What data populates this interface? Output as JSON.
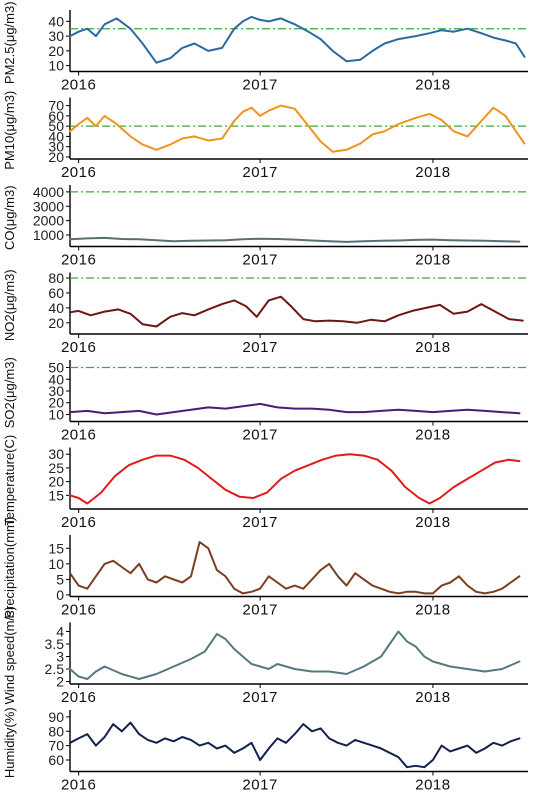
{
  "chart_data": [
    {
      "type": "line",
      "ylabel": "PM2.5(μg/m3)",
      "color": "#2a6aa3",
      "yticks": [
        10,
        20,
        30,
        40
      ],
      "ylim": [
        6,
        45
      ],
      "threshold": 35,
      "threshold_color": "#3aaa35",
      "xticks": [
        "2016",
        "2017",
        "2018"
      ],
      "x_year_positions": [
        2016.05,
        2017.1,
        2018.1
      ],
      "xlim": [
        2016.0,
        2018.65
      ],
      "series": [
        {
          "x": [
            2016.0,
            2016.05,
            2016.1,
            2016.15,
            2016.2,
            2016.27,
            2016.35,
            2016.42,
            2016.5,
            2016.58,
            2016.65,
            2016.72,
            2016.8,
            2016.88,
            2016.95,
            2017.0,
            2017.05,
            2017.1,
            2017.15,
            2017.22,
            2017.3,
            2017.38,
            2017.45,
            2017.52,
            2017.6,
            2017.68,
            2017.75,
            2017.82,
            2017.9,
            2018.0,
            2018.08,
            2018.15,
            2018.22,
            2018.3,
            2018.38,
            2018.45,
            2018.52,
            2018.58,
            2018.63
          ],
          "values": [
            30,
            33,
            35,
            30,
            38,
            42,
            35,
            25,
            12,
            15,
            22,
            25,
            20,
            22,
            35,
            40,
            43,
            41,
            40,
            42,
            38,
            33,
            28,
            20,
            13,
            14,
            20,
            25,
            28,
            30,
            32,
            34,
            33,
            35,
            32,
            29,
            27,
            25,
            16
          ]
        }
      ]
    },
    {
      "type": "line",
      "ylabel": "PM10(μg/m3)",
      "color": "#f0941d",
      "yticks": [
        20,
        30,
        40,
        50,
        60,
        70
      ],
      "ylim": [
        18,
        74
      ],
      "threshold": 50,
      "threshold_color": "#3aaa35",
      "xticks": [
        "2016",
        "2017",
        "2018"
      ],
      "x_year_positions": [
        2016.05,
        2017.1,
        2018.1
      ],
      "xlim": [
        2016.0,
        2018.65
      ],
      "series": [
        {
          "x": [
            2016.0,
            2016.05,
            2016.1,
            2016.15,
            2016.2,
            2016.27,
            2016.35,
            2016.42,
            2016.5,
            2016.58,
            2016.65,
            2016.72,
            2016.8,
            2016.88,
            2016.95,
            2017.0,
            2017.05,
            2017.1,
            2017.15,
            2017.22,
            2017.3,
            2017.38,
            2017.45,
            2017.52,
            2017.6,
            2017.68,
            2017.75,
            2017.82,
            2017.9,
            2018.0,
            2018.08,
            2018.15,
            2018.22,
            2018.3,
            2018.38,
            2018.45,
            2018.52,
            2018.58,
            2018.63
          ],
          "values": [
            45,
            52,
            58,
            50,
            60,
            52,
            40,
            32,
            27,
            32,
            38,
            40,
            36,
            38,
            55,
            64,
            68,
            60,
            65,
            70,
            67,
            50,
            35,
            25,
            27,
            33,
            42,
            45,
            52,
            58,
            62,
            56,
            45,
            40,
            55,
            68,
            60,
            45,
            33
          ]
        }
      ]
    },
    {
      "type": "line",
      "ylabel": "CO(μg/m3)",
      "color": "#5a6e76",
      "yticks": [
        1000,
        2000,
        3000,
        4000
      ],
      "ylim": [
        200,
        4200
      ],
      "threshold": 4000,
      "threshold_color": "#3aaa35",
      "xticks": [
        "2016",
        "2017",
        "2018"
      ],
      "x_year_positions": [
        2016.05,
        2017.1,
        2018.1
      ],
      "xlim": [
        2016.0,
        2018.65
      ],
      "series": [
        {
          "x": [
            2016.0,
            2016.1,
            2016.2,
            2016.3,
            2016.4,
            2016.5,
            2016.6,
            2016.7,
            2016.8,
            2016.9,
            2017.0,
            2017.1,
            2017.2,
            2017.3,
            2017.4,
            2017.5,
            2017.6,
            2017.7,
            2017.8,
            2017.9,
            2018.0,
            2018.1,
            2018.2,
            2018.3,
            2018.4,
            2018.5,
            2018.6
          ],
          "values": [
            700,
            760,
            800,
            720,
            700,
            640,
            560,
            600,
            620,
            640,
            700,
            740,
            720,
            680,
            620,
            560,
            520,
            560,
            600,
            620,
            660,
            680,
            640,
            620,
            600,
            560,
            540
          ]
        }
      ]
    },
    {
      "type": "line",
      "ylabel": "NO2(μg/m3)",
      "color": "#6e1616",
      "yticks": [
        20,
        40,
        60,
        80
      ],
      "ylim": [
        5,
        82
      ],
      "threshold": 80,
      "threshold_color": "#3aaa35",
      "xticks": [
        "2016",
        "2017",
        "2018"
      ],
      "x_year_positions": [
        2016.05,
        2017.1,
        2018.1
      ],
      "xlim": [
        2016.0,
        2018.65
      ],
      "series": [
        {
          "x": [
            2016.0,
            2016.05,
            2016.12,
            2016.2,
            2016.28,
            2016.35,
            2016.42,
            2016.5,
            2016.58,
            2016.65,
            2016.72,
            2016.8,
            2016.88,
            2016.95,
            2017.02,
            2017.08,
            2017.15,
            2017.22,
            2017.28,
            2017.35,
            2017.42,
            2017.5,
            2017.58,
            2017.66,
            2017.74,
            2017.82,
            2017.9,
            2017.98,
            2018.06,
            2018.14,
            2018.22,
            2018.3,
            2018.38,
            2018.46,
            2018.54,
            2018.62
          ],
          "values": [
            34,
            36,
            30,
            35,
            38,
            32,
            18,
            15,
            28,
            33,
            30,
            38,
            45,
            50,
            42,
            28,
            50,
            55,
            42,
            25,
            22,
            23,
            22,
            20,
            24,
            22,
            30,
            36,
            40,
            44,
            32,
            35,
            45,
            35,
            25,
            23
          ]
        }
      ]
    },
    {
      "type": "line",
      "ylabel": "SO2(μg/m3)",
      "color": "#4e1a7a",
      "yticks": [
        10,
        20,
        30,
        40,
        50
      ],
      "ylim": [
        4,
        53
      ],
      "threshold": 50,
      "threshold_color": "#3aaa35",
      "xticks": [
        "2016",
        "2017",
        "2018"
      ],
      "x_year_positions": [
        2016.05,
        2017.1,
        2018.1
      ],
      "xlim": [
        2016.0,
        2018.65
      ],
      "series": [
        {
          "x": [
            2016.0,
            2016.1,
            2016.2,
            2016.3,
            2016.4,
            2016.5,
            2016.6,
            2016.7,
            2016.8,
            2016.9,
            2017.0,
            2017.1,
            2017.2,
            2017.3,
            2017.4,
            2017.5,
            2017.6,
            2017.7,
            2017.8,
            2017.9,
            2018.0,
            2018.1,
            2018.2,
            2018.3,
            2018.4,
            2018.5,
            2018.6
          ],
          "values": [
            12,
            13,
            11,
            12,
            13,
            10,
            12,
            14,
            16,
            15,
            17,
            19,
            16,
            15,
            15,
            14,
            12,
            12,
            13,
            14,
            13,
            12,
            13,
            14,
            13,
            12,
            11
          ]
        }
      ]
    },
    {
      "type": "line",
      "ylabel": "Temperature(C)",
      "color": "#e11b1b",
      "yticks": [
        15,
        20,
        25,
        30
      ],
      "ylim": [
        10,
        31
      ],
      "xticks": [
        "2016",
        "2017",
        "2018"
      ],
      "x_year_positions": [
        2016.05,
        2017.1,
        2018.1
      ],
      "xlim": [
        2016.0,
        2018.65
      ],
      "series": [
        {
          "x": [
            2016.0,
            2016.05,
            2016.1,
            2016.18,
            2016.26,
            2016.34,
            2016.42,
            2016.5,
            2016.58,
            2016.66,
            2016.74,
            2016.82,
            2016.9,
            2016.98,
            2017.06,
            2017.14,
            2017.22,
            2017.3,
            2017.38,
            2017.46,
            2017.54,
            2017.62,
            2017.7,
            2017.78,
            2017.86,
            2017.94,
            2018.02,
            2018.08,
            2018.14,
            2018.22,
            2018.3,
            2018.38,
            2018.46,
            2018.54,
            2018.6
          ],
          "values": [
            15,
            14,
            12,
            16,
            22,
            26,
            28,
            29.5,
            29.5,
            28,
            25,
            21,
            17,
            14.5,
            14,
            16,
            21,
            24,
            26,
            28,
            29.5,
            30,
            29.5,
            28,
            24,
            18,
            14,
            12,
            14,
            18,
            21,
            24,
            27,
            28,
            27.5
          ]
        }
      ]
    },
    {
      "type": "line",
      "ylabel": "Precipitation(mm)",
      "color": "#7a3e20",
      "yticks": [
        0,
        5,
        10,
        15
      ],
      "ylim": [
        -0.5,
        18
      ],
      "xticks": [
        "2016",
        "2017",
        "2018"
      ],
      "x_year_positions": [
        2016.05,
        2017.1,
        2018.1
      ],
      "xlim": [
        2016.0,
        2018.65
      ],
      "series": [
        {
          "x": [
            2016.0,
            2016.05,
            2016.1,
            2016.15,
            2016.2,
            2016.25,
            2016.3,
            2016.35,
            2016.4,
            2016.45,
            2016.5,
            2016.55,
            2016.6,
            2016.65,
            2016.7,
            2016.75,
            2016.8,
            2016.85,
            2016.9,
            2016.95,
            2017.0,
            2017.05,
            2017.1,
            2017.15,
            2017.2,
            2017.25,
            2017.3,
            2017.35,
            2017.4,
            2017.45,
            2017.5,
            2017.55,
            2017.6,
            2017.65,
            2017.7,
            2017.75,
            2017.8,
            2017.85,
            2017.9,
            2017.95,
            2018.0,
            2018.05,
            2018.1,
            2018.15,
            2018.2,
            2018.25,
            2018.3,
            2018.35,
            2018.4,
            2018.45,
            2018.5,
            2018.55,
            2018.6
          ],
          "values": [
            7,
            3,
            2,
            6,
            10,
            11,
            9,
            7,
            10,
            5,
            4,
            6,
            5,
            4,
            6,
            17,
            15,
            8,
            6,
            2,
            0.5,
            1,
            2,
            6,
            4,
            2,
            3,
            2,
            5,
            8,
            10,
            6,
            3,
            7,
            5,
            3,
            2,
            1,
            0.5,
            1,
            1,
            0.5,
            0.5,
            3,
            4,
            6,
            3,
            1,
            0.5,
            1,
            2,
            4,
            6
          ]
        }
      ]
    },
    {
      "type": "line",
      "ylabel": "Wind speed(m/s)",
      "color": "#567880",
      "yticks": [
        2.0,
        2.5,
        3.0,
        3.5,
        4.0
      ],
      "ylim": [
        1.9,
        4.2
      ],
      "xticks": [
        "2016",
        "2017",
        "2018"
      ],
      "x_year_positions": [
        2016.05,
        2017.1,
        2018.1
      ],
      "xlim": [
        2016.0,
        2018.65
      ],
      "series": [
        {
          "x": [
            2016.0,
            2016.05,
            2016.1,
            2016.15,
            2016.2,
            2016.3,
            2016.4,
            2016.5,
            2016.6,
            2016.7,
            2016.78,
            2016.85,
            2016.9,
            2016.95,
            2017.0,
            2017.05,
            2017.1,
            2017.15,
            2017.2,
            2017.3,
            2017.4,
            2017.5,
            2017.6,
            2017.7,
            2017.8,
            2017.85,
            2017.9,
            2017.95,
            2018.0,
            2018.05,
            2018.1,
            2018.2,
            2018.3,
            2018.4,
            2018.5,
            2018.6
          ],
          "values": [
            2.5,
            2.2,
            2.1,
            2.4,
            2.6,
            2.3,
            2.1,
            2.3,
            2.6,
            2.9,
            3.2,
            3.9,
            3.7,
            3.3,
            3.0,
            2.7,
            2.6,
            2.5,
            2.7,
            2.5,
            2.4,
            2.4,
            2.3,
            2.6,
            3.0,
            3.5,
            4.0,
            3.6,
            3.4,
            3.0,
            2.8,
            2.6,
            2.5,
            2.4,
            2.5,
            2.8
          ]
        }
      ]
    },
    {
      "type": "line",
      "ylabel": "Humidity(%)",
      "color": "#14204f",
      "yticks": [
        60,
        70,
        80,
        90
      ],
      "ylim": [
        52,
        92
      ],
      "xticks": [
        "2016",
        "2017",
        "2018"
      ],
      "x_year_positions": [
        2016.05,
        2017.1,
        2018.1
      ],
      "xlim": [
        2016.0,
        2018.65
      ],
      "series": [
        {
          "x": [
            2016.0,
            2016.05,
            2016.1,
            2016.15,
            2016.2,
            2016.25,
            2016.3,
            2016.35,
            2016.4,
            2016.45,
            2016.5,
            2016.55,
            2016.6,
            2016.65,
            2016.7,
            2016.75,
            2016.8,
            2016.85,
            2016.9,
            2016.95,
            2017.0,
            2017.05,
            2017.1,
            2017.15,
            2017.2,
            2017.25,
            2017.3,
            2017.35,
            2017.4,
            2017.45,
            2017.5,
            2017.55,
            2017.6,
            2017.65,
            2017.7,
            2017.75,
            2017.8,
            2017.85,
            2017.9,
            2017.95,
            2018.0,
            2018.05,
            2018.1,
            2018.15,
            2018.2,
            2018.25,
            2018.3,
            2018.35,
            2018.4,
            2018.45,
            2018.5,
            2018.55,
            2018.6
          ],
          "values": [
            72,
            75,
            78,
            70,
            76,
            85,
            80,
            86,
            78,
            74,
            72,
            75,
            73,
            76,
            74,
            70,
            72,
            68,
            70,
            65,
            68,
            72,
            60,
            68,
            75,
            72,
            78,
            85,
            80,
            82,
            75,
            72,
            70,
            74,
            72,
            70,
            68,
            65,
            62,
            55,
            56,
            55,
            60,
            70,
            66,
            68,
            70,
            65,
            68,
            72,
            70,
            73,
            75
          ]
        }
      ]
    }
  ]
}
